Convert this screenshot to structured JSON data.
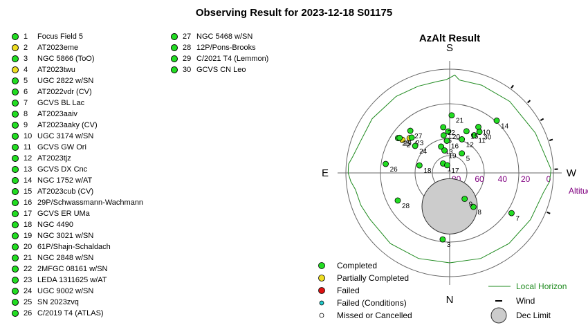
{
  "title": "Observing Result for 2023-12-18 S01175",
  "status_colors": {
    "Completed": "#22dd22",
    "Partially Completed": "#eedd22",
    "Failed": "#dd1111",
    "Failed (Conditions)": "#22cccc",
    "Missed or Cancelled": "#ffffff"
  },
  "targets": [
    {
      "num": "1",
      "name": "Focus Field 5",
      "status": "Completed"
    },
    {
      "num": "2",
      "name": "AT2023eme",
      "status": "Partially Completed"
    },
    {
      "num": "3",
      "name": "NGC 5866 (ToO)",
      "status": "Completed"
    },
    {
      "num": "4",
      "name": "AT2023twu",
      "status": "Partially Completed"
    },
    {
      "num": "5",
      "name": "UGC 2822 w/SN",
      "status": "Completed"
    },
    {
      "num": "6",
      "name": "AT2022vdr (CV)",
      "status": "Completed"
    },
    {
      "num": "7",
      "name": "GCVS BL Lac",
      "status": "Completed"
    },
    {
      "num": "8",
      "name": "AT2023aaiv",
      "status": "Completed"
    },
    {
      "num": "9",
      "name": "AT2023aaky (CV)",
      "status": "Completed"
    },
    {
      "num": "10",
      "name": "UGC 3174 w/SN",
      "status": "Completed"
    },
    {
      "num": "11",
      "name": "GCVS GW Ori",
      "status": "Completed"
    },
    {
      "num": "12",
      "name": "AT2023tjz",
      "status": "Completed"
    },
    {
      "num": "13",
      "name": "GCVS DX Cnc",
      "status": "Completed"
    },
    {
      "num": "14",
      "name": "NGC 1752 w/AT",
      "status": "Completed"
    },
    {
      "num": "15",
      "name": "AT2023cub (CV)",
      "status": "Completed"
    },
    {
      "num": "16",
      "name": "29P/Schwassmann-Wachmann",
      "status": "Completed"
    },
    {
      "num": "17",
      "name": "GCVS ER UMa",
      "status": "Completed"
    },
    {
      "num": "18",
      "name": "NGC 4490",
      "status": "Completed"
    },
    {
      "num": "19",
      "name": "NGC 3021 w/SN",
      "status": "Completed"
    },
    {
      "num": "20",
      "name": "61P/Shajn-Schaldach",
      "status": "Completed"
    },
    {
      "num": "21",
      "name": "NGC 2848 w/SN",
      "status": "Completed"
    },
    {
      "num": "22",
      "name": "2MFGC 08161 w/SN",
      "status": "Completed"
    },
    {
      "num": "23",
      "name": "LEDA 1311625 w/AT",
      "status": "Completed"
    },
    {
      "num": "24",
      "name": "UGC 9002 w/SN",
      "status": "Completed"
    },
    {
      "num": "25",
      "name": "SN 2023zvq",
      "status": "Completed"
    },
    {
      "num": "26",
      "name": "C/2019 T4 (ATLAS)",
      "status": "Completed"
    },
    {
      "num": "27",
      "name": "NGC 5468 w/SN",
      "status": "Completed"
    },
    {
      "num": "28",
      "name": "12P/Pons-Brooks",
      "status": "Completed"
    },
    {
      "num": "29",
      "name": "C/2021 T4 (Lemmon)",
      "status": "Completed"
    },
    {
      "num": "30",
      "name": "GCVS CN Leo",
      "status": "Completed"
    }
  ],
  "chart_data": {
    "type": "scatter",
    "projection": "polar azimuth/altitude (zenith at center, horizon at rim)",
    "title": "AzAlt Result",
    "compass": {
      "top": "S",
      "bottom": "N",
      "left": "E",
      "right": "W"
    },
    "altitude_ticks": [
      "80",
      "60",
      "40",
      "20",
      "0"
    ],
    "altitude_label": "Altitude",
    "altitude_rings": [
      0,
      30,
      60
    ],
    "points": [
      {
        "label": "1",
        "az": 145,
        "alt": 80,
        "status": "Completed"
      },
      {
        "label": "2",
        "az": 125,
        "alt": 40,
        "status": "Partially Completed"
      },
      {
        "label": "3",
        "az": 6,
        "alt": 32,
        "status": "Completed"
      },
      {
        "label": "4",
        "az": 131,
        "alt": 44,
        "status": "Partially Completed"
      },
      {
        "label": "5",
        "az": 212,
        "alt": 70,
        "status": "Completed"
      },
      {
        "label": "6",
        "az": 171,
        "alt": 57,
        "status": "Completed"
      },
      {
        "label": "7",
        "az": 303,
        "alt": 26,
        "status": "Completed"
      },
      {
        "label": "8",
        "az": 325,
        "alt": 54,
        "status": "Completed"
      },
      {
        "label": "9",
        "az": 330,
        "alt": 64,
        "status": "Completed"
      },
      {
        "label": "10",
        "az": 212,
        "alt": 43,
        "status": "Completed"
      },
      {
        "label": "11",
        "az": 213,
        "alt": 51,
        "status": "Completed"
      },
      {
        "label": "12",
        "az": 200,
        "alt": 59,
        "status": "Completed"
      },
      {
        "label": "13",
        "az": 162,
        "alt": 66,
        "status": "Completed"
      },
      {
        "label": "14",
        "az": 222,
        "alt": 29,
        "status": "Completed"
      },
      {
        "label": "15",
        "az": 202,
        "alt": 51,
        "status": "Completed"
      },
      {
        "label": "16",
        "az": 175,
        "alt": 62,
        "status": "Completed"
      },
      {
        "label": "17",
        "az": 162,
        "alt": 83,
        "status": "Completed"
      },
      {
        "label": "18",
        "az": 104,
        "alt": 63,
        "status": "Completed"
      },
      {
        "label": "19",
        "az": 167,
        "alt": 70,
        "status": "Completed"
      },
      {
        "label": "20",
        "az": 178,
        "alt": 54,
        "status": "Completed"
      },
      {
        "label": "21",
        "az": 182,
        "alt": 40,
        "status": "Completed"
      },
      {
        "label": "22",
        "az": 172,
        "alt": 50,
        "status": "Completed"
      },
      {
        "label": "23",
        "az": 133,
        "alt": 45,
        "status": "Completed"
      },
      {
        "label": "24",
        "az": 128,
        "alt": 52,
        "status": "Completed"
      },
      {
        "label": "25",
        "az": 124,
        "alt": 36,
        "status": "Completed"
      },
      {
        "label": "26",
        "az": 98,
        "alt": 34,
        "status": "Completed"
      },
      {
        "label": "27",
        "az": 137,
        "alt": 40,
        "status": "Completed"
      },
      {
        "label": "28",
        "az": 62,
        "alt": 39,
        "status": "Completed"
      },
      {
        "label": "29",
        "az": 125,
        "alt": 37,
        "status": "Completed"
      },
      {
        "label": "30",
        "az": 216,
        "alt": 46,
        "status": "Completed"
      }
    ],
    "dec_limit": {
      "az": 0,
      "alt": 61,
      "radius_deg": 24
    },
    "wind_azimuths": [
      216,
      228,
      240,
      252,
      268,
      292
    ],
    "horizon": [
      [
        0,
        12
      ],
      [
        20,
        11
      ],
      [
        40,
        10
      ],
      [
        60,
        10
      ],
      [
        70,
        8
      ],
      [
        80,
        7
      ],
      [
        85,
        4
      ],
      [
        90,
        2
      ],
      [
        95,
        2
      ],
      [
        100,
        5
      ],
      [
        110,
        8
      ],
      [
        125,
        8
      ],
      [
        145,
        9
      ],
      [
        160,
        10
      ],
      [
        172,
        10
      ],
      [
        178,
        9
      ],
      [
        183,
        5
      ],
      [
        186,
        9
      ],
      [
        200,
        9
      ],
      [
        220,
        9
      ],
      [
        245,
        8
      ],
      [
        268,
        2
      ],
      [
        275,
        3
      ],
      [
        282,
        7
      ],
      [
        300,
        9
      ],
      [
        320,
        10
      ],
      [
        340,
        11
      ],
      [
        360,
        12
      ]
    ],
    "legend": [
      {
        "label": "Completed",
        "status": "Completed"
      },
      {
        "label": "Partially Completed",
        "status": "Partially Completed"
      },
      {
        "label": "Failed",
        "status": "Failed"
      },
      {
        "label": "Failed (Conditions)",
        "status": "Failed (Conditions)"
      },
      {
        "label": "Missed or Cancelled",
        "status": "Missed or Cancelled"
      }
    ],
    "legend_right": {
      "horizon": "Local Horizon",
      "wind": "Wind",
      "dec": "Dec Limit"
    },
    "colors": {
      "horizon": "#1e8a1e",
      "grid": "#666666",
      "altitude_text": "#800080",
      "dec_fill": "#cccccc"
    }
  }
}
